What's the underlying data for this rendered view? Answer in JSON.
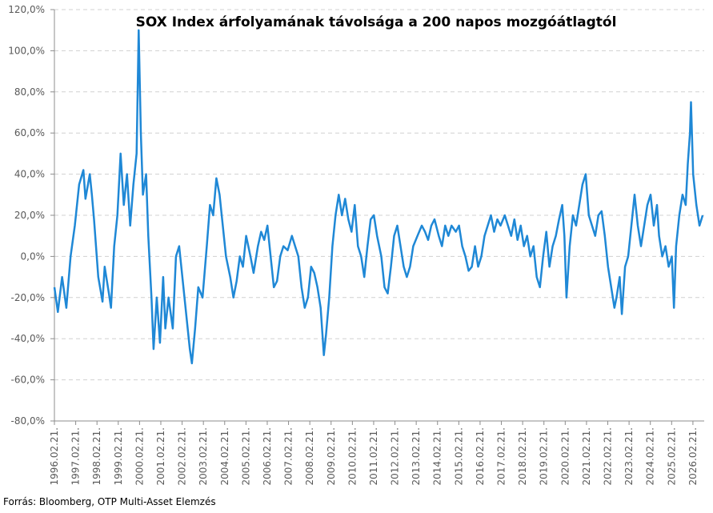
{
  "chart_data": {
    "type": "line",
    "title": "SOX Index árfolyamának távolsága a 200 napos mozgóátlagtól",
    "source": "Forrás: Bloomberg, OTP Multi-Asset Elemzés",
    "color": "#1f88d6",
    "grid": true,
    "xlim": [
      1996.14,
      2026.67
    ],
    "ylim": [
      -80,
      120
    ],
    "yticks": [
      {
        "value": -80,
        "label": "-80,0%"
      },
      {
        "value": -60,
        "label": "-60,0%"
      },
      {
        "value": -40,
        "label": "-40,0%"
      },
      {
        "value": -20,
        "label": "-20,0%"
      },
      {
        "value": 0,
        "label": "0,0%"
      },
      {
        "value": 20,
        "label": "20,0%"
      },
      {
        "value": 40,
        "label": "40,0%"
      },
      {
        "value": 60,
        "label": "60,0%"
      },
      {
        "value": 80,
        "label": "80,0%"
      },
      {
        "value": 100,
        "label": "100,0%"
      },
      {
        "value": 120,
        "label": "120,0%"
      }
    ],
    "xticks": [
      {
        "value": 1996.14,
        "label": "1996.02.21."
      },
      {
        "value": 1997.14,
        "label": "1997.02.21."
      },
      {
        "value": 1998.14,
        "label": "1998.02.21."
      },
      {
        "value": 1999.14,
        "label": "1999.02.21."
      },
      {
        "value": 2000.14,
        "label": "2000.02.21."
      },
      {
        "value": 2001.14,
        "label": "2001.02.21."
      },
      {
        "value": 2002.14,
        "label": "2002.02.21."
      },
      {
        "value": 2003.14,
        "label": "2003.02.21."
      },
      {
        "value": 2004.14,
        "label": "2004.02.21."
      },
      {
        "value": 2005.14,
        "label": "2005.02.21."
      },
      {
        "value": 2006.14,
        "label": "2006.02.21."
      },
      {
        "value": 2007.14,
        "label": "2007.02.21."
      },
      {
        "value": 2008.14,
        "label": "2008.02.21."
      },
      {
        "value": 2009.14,
        "label": "2009.02.21."
      },
      {
        "value": 2010.14,
        "label": "2010.02.21."
      },
      {
        "value": 2011.14,
        "label": "2011.02.21."
      },
      {
        "value": 2012.14,
        "label": "2012.02.21."
      },
      {
        "value": 2013.14,
        "label": "2013.02.21."
      },
      {
        "value": 2014.14,
        "label": "2014.02.21."
      },
      {
        "value": 2015.14,
        "label": "2015.02.21."
      },
      {
        "value": 2016.14,
        "label": "2016.02.21."
      },
      {
        "value": 2017.14,
        "label": "2017.02.21."
      },
      {
        "value": 2018.14,
        "label": "2018.02.21."
      },
      {
        "value": 2019.14,
        "label": "2019.02.21."
      },
      {
        "value": 2020.14,
        "label": "2020.02.21."
      },
      {
        "value": 2021.14,
        "label": "2021.02.21."
      },
      {
        "value": 2022.14,
        "label": "2022.02.21."
      },
      {
        "value": 2023.14,
        "label": "2023.02.21."
      },
      {
        "value": 2024.14,
        "label": "2024.02.21."
      },
      {
        "value": 2025.14,
        "label": "2025.02.21."
      },
      {
        "value": 2026.14,
        "label": "2026.02.21."
      }
    ],
    "x": [
      1996.14,
      1996.3,
      1996.5,
      1996.7,
      1996.9,
      1997.1,
      1997.3,
      1997.5,
      1997.6,
      1997.8,
      1997.9,
      1998.0,
      1998.2,
      1998.4,
      1998.5,
      1998.7,
      1998.8,
      1998.95,
      1999.1,
      1999.25,
      1999.4,
      1999.55,
      1999.7,
      1999.85,
      2000.0,
      2000.1,
      2000.2,
      2000.3,
      2000.45,
      2000.55,
      2000.7,
      2000.8,
      2000.95,
      2001.1,
      2001.25,
      2001.35,
      2001.5,
      2001.7,
      2001.85,
      2002.0,
      2002.2,
      2002.35,
      2002.5,
      2002.6,
      2002.75,
      2002.9,
      2003.1,
      2003.3,
      2003.45,
      2003.6,
      2003.75,
      2003.9,
      2004.05,
      2004.2,
      2004.4,
      2004.55,
      2004.7,
      2004.85,
      2005.0,
      2005.15,
      2005.35,
      2005.5,
      2005.7,
      2005.85,
      2006.0,
      2006.15,
      2006.3,
      2006.45,
      2006.6,
      2006.75,
      2006.9,
      2007.1,
      2007.3,
      2007.45,
      2007.6,
      2007.75,
      2007.9,
      2008.05,
      2008.2,
      2008.35,
      2008.5,
      2008.65,
      2008.8,
      2008.9,
      2009.05,
      2009.2,
      2009.35,
      2009.5,
      2009.65,
      2009.8,
      2009.95,
      2010.1,
      2010.25,
      2010.4,
      2010.55,
      2010.7,
      2010.85,
      2011.0,
      2011.15,
      2011.3,
      2011.5,
      2011.65,
      2011.8,
      2011.95,
      2012.1,
      2012.25,
      2012.4,
      2012.55,
      2012.7,
      2012.85,
      2013.0,
      2013.2,
      2013.4,
      2013.55,
      2013.7,
      2013.85,
      2014.0,
      2014.2,
      2014.35,
      2014.5,
      2014.65,
      2014.8,
      2015.0,
      2015.15,
      2015.3,
      2015.45,
      2015.6,
      2015.75,
      2015.9,
      2016.05,
      2016.2,
      2016.35,
      2016.5,
      2016.65,
      2016.8,
      2016.95,
      2017.1,
      2017.3,
      2017.45,
      2017.6,
      2017.75,
      2017.9,
      2018.05,
      2018.2,
      2018.35,
      2018.5,
      2018.65,
      2018.8,
      2018.95,
      2019.1,
      2019.25,
      2019.4,
      2019.55,
      2019.7,
      2019.85,
      2020.0,
      2020.1,
      2020.2,
      2020.35,
      2020.5,
      2020.65,
      2020.8,
      2020.95,
      2021.1,
      2021.25,
      2021.4,
      2021.55,
      2021.7,
      2021.85,
      2022.0,
      2022.15,
      2022.3,
      2022.45,
      2022.55,
      2022.7,
      2022.8,
      2022.95,
      2023.1,
      2023.25,
      2023.4,
      2023.55,
      2023.7,
      2023.85,
      2024.0,
      2024.15,
      2024.3,
      2024.45,
      2024.55,
      2024.7,
      2024.85,
      2025.0,
      2025.15,
      2025.25,
      2025.35,
      2025.5,
      2025.65,
      2025.8,
      2025.9,
      2026.0,
      2026.05,
      2026.15,
      2026.3,
      2026.45,
      2026.6
    ],
    "values": [
      -15,
      -27,
      -10,
      -25,
      0,
      15,
      35,
      42,
      28,
      40,
      30,
      18,
      -10,
      -22,
      -5,
      -18,
      -25,
      5,
      20,
      50,
      25,
      40,
      15,
      35,
      50,
      110,
      60,
      30,
      40,
      10,
      -20,
      -45,
      -20,
      -42,
      -10,
      -35,
      -20,
      -35,
      0,
      5,
      -15,
      -30,
      -45,
      -52,
      -35,
      -15,
      -20,
      5,
      25,
      20,
      38,
      30,
      15,
      0,
      -10,
      -20,
      -12,
      0,
      -5,
      10,
      0,
      -8,
      5,
      12,
      8,
      15,
      0,
      -15,
      -12,
      0,
      5,
      3,
      10,
      5,
      0,
      -15,
      -25,
      -20,
      -5,
      -8,
      -15,
      -25,
      -48,
      -38,
      -20,
      5,
      20,
      30,
      20,
      28,
      18,
      12,
      25,
      5,
      0,
      -10,
      5,
      18,
      20,
      10,
      0,
      -15,
      -18,
      -5,
      10,
      15,
      5,
      -5,
      -10,
      -5,
      5,
      10,
      15,
      12,
      8,
      15,
      18,
      10,
      5,
      15,
      10,
      15,
      12,
      15,
      5,
      0,
      -7,
      -5,
      5,
      -5,
      0,
      10,
      15,
      20,
      12,
      18,
      15,
      20,
      15,
      10,
      18,
      8,
      15,
      5,
      10,
      0,
      5,
      -10,
      -15,
      0,
      12,
      -5,
      5,
      10,
      18,
      25,
      10,
      -20,
      5,
      20,
      15,
      25,
      35,
      40,
      20,
      15,
      10,
      20,
      22,
      10,
      -5,
      -15,
      -25,
      -20,
      -10,
      -28,
      -5,
      0,
      15,
      30,
      15,
      5,
      15,
      25,
      30,
      15,
      25,
      10,
      0,
      5,
      -5,
      0,
      -25,
      5,
      20,
      30,
      25,
      45,
      60,
      75,
      40,
      25,
      15,
      20
    ]
  }
}
